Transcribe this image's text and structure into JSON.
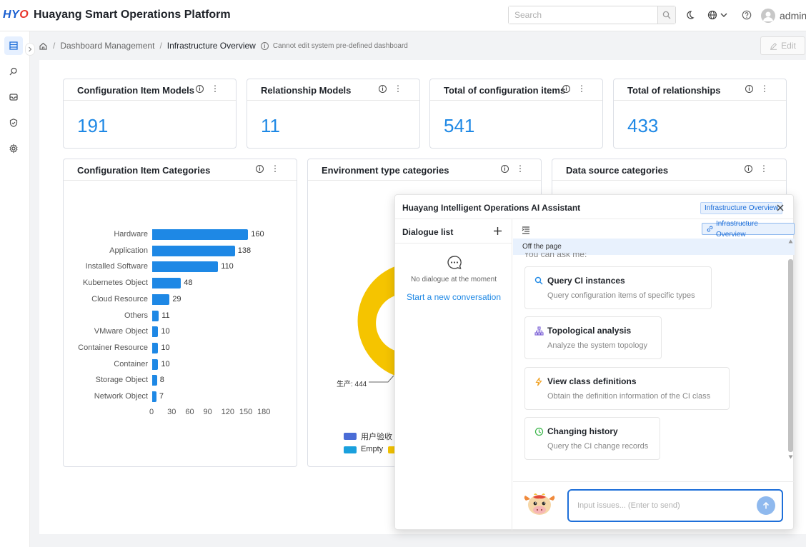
{
  "header": {
    "logo": "HYO",
    "app_title": "Huayang Smart Operations Platform",
    "search_placeholder": "Search",
    "user_name": "admin"
  },
  "breadcrumb": {
    "items": [
      "Dashboard Management",
      "Infrastructure Overview"
    ],
    "note": "Cannot edit system pre-defined dashboard",
    "edit_label": "Edit"
  },
  "stats": [
    {
      "title": "Configuration Item Models",
      "value": "191"
    },
    {
      "title": "Relationship Models",
      "value": "11"
    },
    {
      "title": "Total of configuration items",
      "value": "541"
    },
    {
      "title": "Total of relationships",
      "value": "433"
    }
  ],
  "charts_cards": {
    "ci_categories": "Configuration Item Categories",
    "env_categories": "Environment type categories",
    "ds_categories": "Data source categories"
  },
  "chart_data": [
    {
      "type": "bar",
      "title": "Configuration Item Categories",
      "orientation": "horizontal",
      "categories": [
        "Hardware",
        "Application",
        "Installed Software",
        "Kubernetes Object",
        "Cloud Resource",
        "Others",
        "VMware Object",
        "Container Resource",
        "Container",
        "Storage Object",
        "Network Object"
      ],
      "values": [
        160,
        138,
        110,
        48,
        29,
        11,
        10,
        10,
        10,
        8,
        7
      ],
      "xlim": [
        0,
        180
      ],
      "xticks": [
        "0",
        "30",
        "60",
        "90",
        "120",
        "150",
        "180"
      ],
      "color": "#1e88e5"
    },
    {
      "type": "pie",
      "title": "Environment type categories",
      "visible_label": "生产: 444",
      "legend": [
        "用户验收",
        "Empty"
      ],
      "colors": [
        "#4a6cd6",
        "#1aa0dd",
        "#f5c400"
      ]
    }
  ],
  "assistant": {
    "title": "Huayang Intelligent Operations AI Assistant",
    "tag": "Infrastructure Overview",
    "dialogue_list_label": "Dialogue list",
    "empty_text": "No dialogue at the moment",
    "new_conversation": "Start a new conversation",
    "page_tag": "Infrastructure Overview",
    "off_page": "Off the page",
    "ask_hint": "You can ask me:",
    "suggestions": [
      {
        "title": "Query CI instances",
        "desc": "Query configuration items of specific types",
        "icon": "search-icon"
      },
      {
        "title": "Topological analysis",
        "desc": "Analyze the system topology",
        "icon": "topology-icon"
      },
      {
        "title": "View class definitions",
        "desc": "Obtain the definition information of the CI class",
        "icon": "lightning-icon"
      },
      {
        "title": "Changing history",
        "desc": "Query the CI change records",
        "icon": "history-icon"
      }
    ],
    "input_placeholder": "Input issues... (Enter to send)"
  }
}
